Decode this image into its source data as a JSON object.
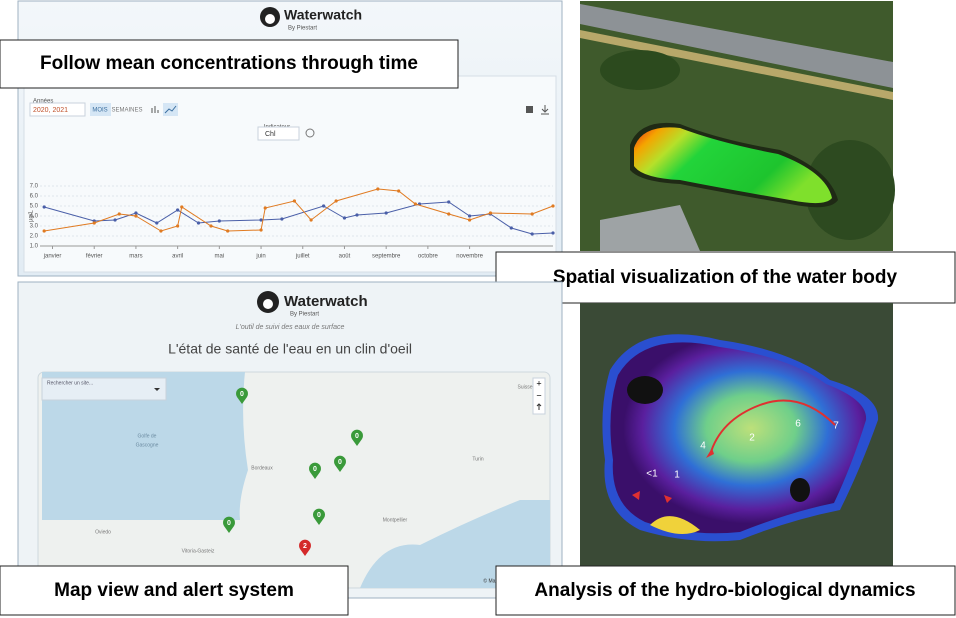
{
  "captions": {
    "time": "Follow mean concentrations through time",
    "spatial": "Spatial visualization of the water body",
    "map": "Map view and alert system",
    "hydro": "Analysis of the hydro-biological dynamics"
  },
  "dashboard": {
    "logo": "Waterwatch",
    "logo_sub": "By Piestart",
    "years_label": "Années",
    "years_value": "2020, 2021",
    "mode_month": "MOIS",
    "mode_week": "SEMAINES",
    "indicator_label": "Indicateur",
    "indicator_value": "Chl",
    "chart": {
      "type": "line",
      "y_label": "µg/L",
      "xlim": [
        -0.3,
        12
      ],
      "xticks": [
        {
          "value": 0,
          "label": "janvier"
        },
        {
          "value": 1,
          "label": "février"
        },
        {
          "value": 2,
          "label": "mars"
        },
        {
          "value": 3,
          "label": "avril"
        },
        {
          "value": 4,
          "label": "mai"
        },
        {
          "value": 5,
          "label": "juin"
        },
        {
          "value": 6,
          "label": "juillet"
        },
        {
          "value": 7,
          "label": "août"
        },
        {
          "value": 8,
          "label": "septembre"
        },
        {
          "value": 9,
          "label": "octobre"
        },
        {
          "value": 10,
          "label": "novembre"
        }
      ],
      "ylim": [
        1,
        7
      ],
      "yticks": [
        {
          "value": 1,
          "label": "1.0"
        },
        {
          "value": 2,
          "label": "2.0"
        },
        {
          "value": 3,
          "label": "3.0"
        },
        {
          "value": 4,
          "label": "4.0"
        },
        {
          "value": 5,
          "label": "5.0"
        },
        {
          "value": 6,
          "label": "6.0"
        },
        {
          "value": 7,
          "label": "7.0"
        }
      ],
      "series": [
        {
          "color": "#4a5fa8",
          "x": [
            -0.2,
            1,
            1.5,
            2,
            2.5,
            3,
            3.5,
            4,
            5,
            5.5,
            6.5,
            7,
            7.3,
            8,
            8.8,
            9.5,
            10,
            10.5,
            11,
            11.5,
            12
          ],
          "values": [
            4.9,
            3.5,
            3.6,
            4.3,
            3.3,
            4.6,
            3.3,
            3.5,
            3.6,
            3.7,
            5.0,
            3.8,
            4.1,
            4.3,
            5.2,
            5.4,
            4.0,
            4.2,
            2.8,
            2.2,
            2.3
          ]
        },
        {
          "color": "#e07b22",
          "x": [
            -0.2,
            1,
            1.6,
            2,
            2.6,
            3,
            3.1,
            3.8,
            4.2,
            5,
            5.1,
            5.8,
            6.2,
            6.8,
            7.8,
            8.3,
            8.7,
            9.5,
            10,
            10.5,
            11.5,
            12
          ],
          "values": [
            2.5,
            3.3,
            4.2,
            4.0,
            2.5,
            3.0,
            4.9,
            3.0,
            2.5,
            2.6,
            4.8,
            5.5,
            3.6,
            5.5,
            6.7,
            6.5,
            5.2,
            4.2,
            3.6,
            4.3,
            4.2,
            5.0
          ]
        }
      ]
    }
  },
  "map_app": {
    "logo": "Waterwatch",
    "logo_sub": "By Piestart",
    "tagline": "L'outil de suivi des eaux de surface",
    "headline": "L'état de santé de l'eau en un clin d'oeil",
    "search": "Rechercher un site...",
    "zoom_in": "+",
    "zoom_out": "−",
    "places": [
      "Golfe de",
      "Gascogne",
      "Bordeaux",
      "Montpellier",
      "Turin",
      "Suisse",
      "Oviedo",
      "Vitoria-Gasteiz"
    ],
    "markers": [
      "0",
      "0",
      "0",
      "0",
      "0",
      "0",
      "2"
    ],
    "attribution": "© Mapbox © OpenStreetMap"
  },
  "hydro": {
    "labels": [
      "<1",
      "1",
      "2",
      "4",
      "6",
      "7"
    ]
  }
}
